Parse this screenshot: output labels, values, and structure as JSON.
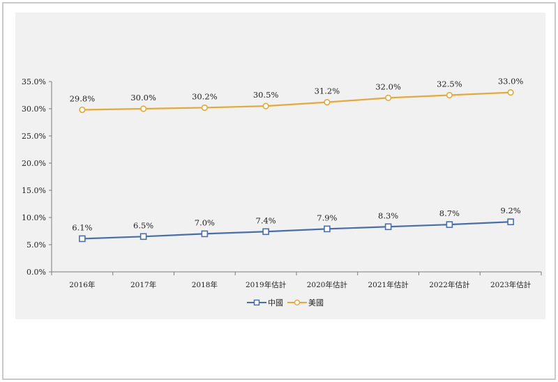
{
  "chart_data": {
    "type": "line",
    "title": "",
    "xlabel": "",
    "ylabel": "",
    "categories": [
      "2016年",
      "2017年",
      "2018年",
      "2019年估計",
      "2020年估計",
      "2021年估計",
      "2022年估計",
      "2023年估計"
    ],
    "ylim": [
      0,
      35
    ],
    "yticks": [
      "0.0%",
      "5.0%",
      "10.0%",
      "15.0%",
      "20.0%",
      "25.0%",
      "30.0%",
      "35.0%"
    ],
    "grid": false,
    "legend_position": "bottom",
    "series": [
      {
        "name": "中國",
        "color": "#4a6ea8",
        "marker": "square",
        "values": [
          6.1,
          6.5,
          7.0,
          7.4,
          7.9,
          8.3,
          8.7,
          9.2
        ],
        "labels": [
          "6.1%",
          "6.5%",
          "7.0%",
          "7.4%",
          "7.9%",
          "8.3%",
          "8.7%",
          "9.2%"
        ]
      },
      {
        "name": "美國",
        "color": "#e3a93c",
        "marker": "circle",
        "values": [
          29.8,
          30.0,
          30.2,
          30.5,
          31.2,
          32.0,
          32.5,
          33.0
        ],
        "labels": [
          "29.8%",
          "30.0%",
          "30.2%",
          "30.5%",
          "31.2%",
          "32.0%",
          "32.5%",
          "33.0%"
        ]
      }
    ]
  }
}
